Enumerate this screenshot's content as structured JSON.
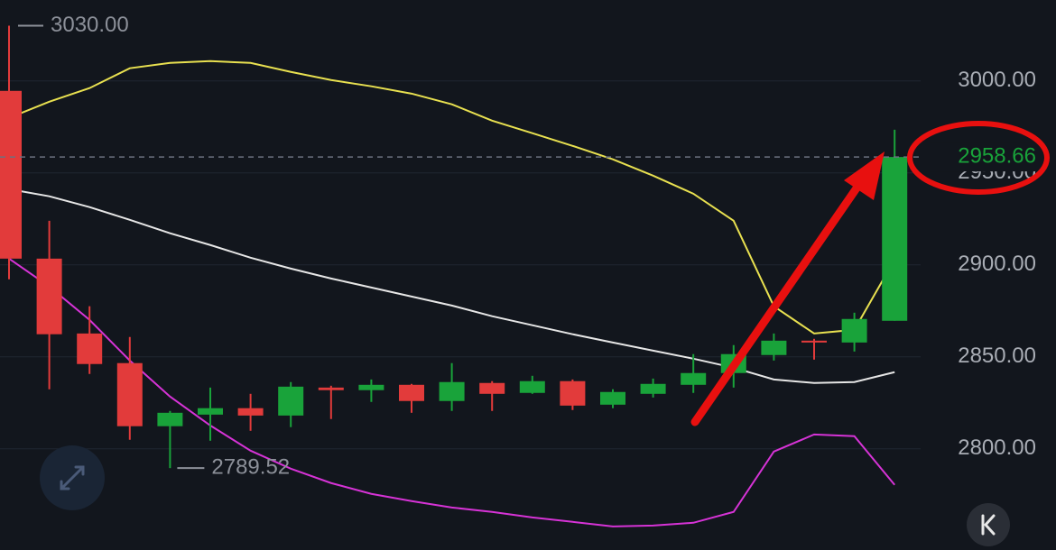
{
  "chart_data": {
    "type": "candlestick",
    "open": [
      2994.6,
      2903.4,
      2862.7,
      2846.6,
      2812.3,
      2818.6,
      2822.1,
      2818.1,
      2833.3,
      2831.9,
      2834.8,
      2826.0,
      2835.8,
      2830.4,
      2836.8,
      2824.0,
      2829.9,
      2834.8,
      2841.2,
      2851.0,
      2858.8,
      2857.8,
      2869.6
    ],
    "high": [
      3030,
      2924.0,
      2877.5,
      2860.8,
      2820.6,
      2833.3,
      2829.9,
      2836.3,
      2834.3,
      2837.7,
      2835.3,
      2846.6,
      2836.8,
      2839.7,
      2837.7,
      2832.4,
      2838.2,
      2851.5,
      2856.4,
      2862.7,
      2859.8,
      2874.0,
      2973.5
    ],
    "low": [
      2892.2,
      2832.4,
      2840.7,
      2804.9,
      2789.52,
      2804.4,
      2809.8,
      2811.8,
      2816.2,
      2825.5,
      2819.6,
      2820.6,
      2820.6,
      2829.9,
      2821.1,
      2822.1,
      2827.9,
      2830.4,
      2833.3,
      2848.0,
      2848.5,
      2852.9,
      2869.6
    ],
    "close": [
      2903.4,
      2862.3,
      2846.1,
      2812.3,
      2819.6,
      2822.1,
      2818.1,
      2833.8,
      2831.9,
      2834.8,
      2826.0,
      2836.3,
      2829.9,
      2836.8,
      2823.5,
      2830.9,
      2835.3,
      2841.2,
      2851.5,
      2858.8,
      2857.8,
      2870.6,
      2958.66
    ],
    "up_color": "#19a33a",
    "down_color": "#e23b3b",
    "lines": [
      {
        "color": "#e8e050",
        "values": [
          2979.9,
          2988.7,
          2996.1,
          3006.9,
          3009.8,
          3010.8,
          3009.8,
          3004.9,
          3000.5,
          2997.1,
          2993.1,
          2987.3,
          2978.4,
          2971.6,
          2964.7,
          2957.4,
          2948.5,
          2938.7,
          2924.0,
          2877.5,
          2862.7,
          2864.7,
          2902.9
        ]
      },
      {
        "color": "#e6e6e6",
        "values": [
          2941.2,
          2937.3,
          2931.4,
          2924.5,
          2917.2,
          2910.8,
          2903.9,
          2898.0,
          2892.6,
          2887.7,
          2882.8,
          2877.9,
          2872.1,
          2867.2,
          2862.3,
          2857.8,
          2853.4,
          2849.0,
          2844.1,
          2837.7,
          2835.8,
          2836.3,
          2841.7
        ]
      },
      {
        "color": "#d633d6",
        "values": [
          2903.4,
          2888.2,
          2870.1,
          2848.0,
          2828.4,
          2812.7,
          2799.0,
          2789.2,
          2781.4,
          2775.5,
          2771.6,
          2768.1,
          2765.7,
          2762.7,
          2760.3,
          2757.8,
          2758.3,
          2759.8,
          2765.7,
          2798.5,
          2807.8,
          2806.9,
          2780.4
        ]
      }
    ],
    "ylim": [
      2745,
      3044
    ],
    "yticks": [
      {
        "value": 2800,
        "label": "2800.00"
      },
      {
        "value": 2850,
        "label": "2850.00"
      },
      {
        "value": 2900,
        "label": "2900.00"
      },
      {
        "value": 2950,
        "label": "2950.00"
      },
      {
        "value": 3000,
        "label": "3000.00"
      }
    ],
    "grid": true,
    "high_label": {
      "value": 3030,
      "label": "3030.00"
    },
    "low_label": {
      "value": 2789.52,
      "label": "2789.52"
    },
    "last_price": {
      "value": 2958.66,
      "label": "2958.66"
    }
  }
}
